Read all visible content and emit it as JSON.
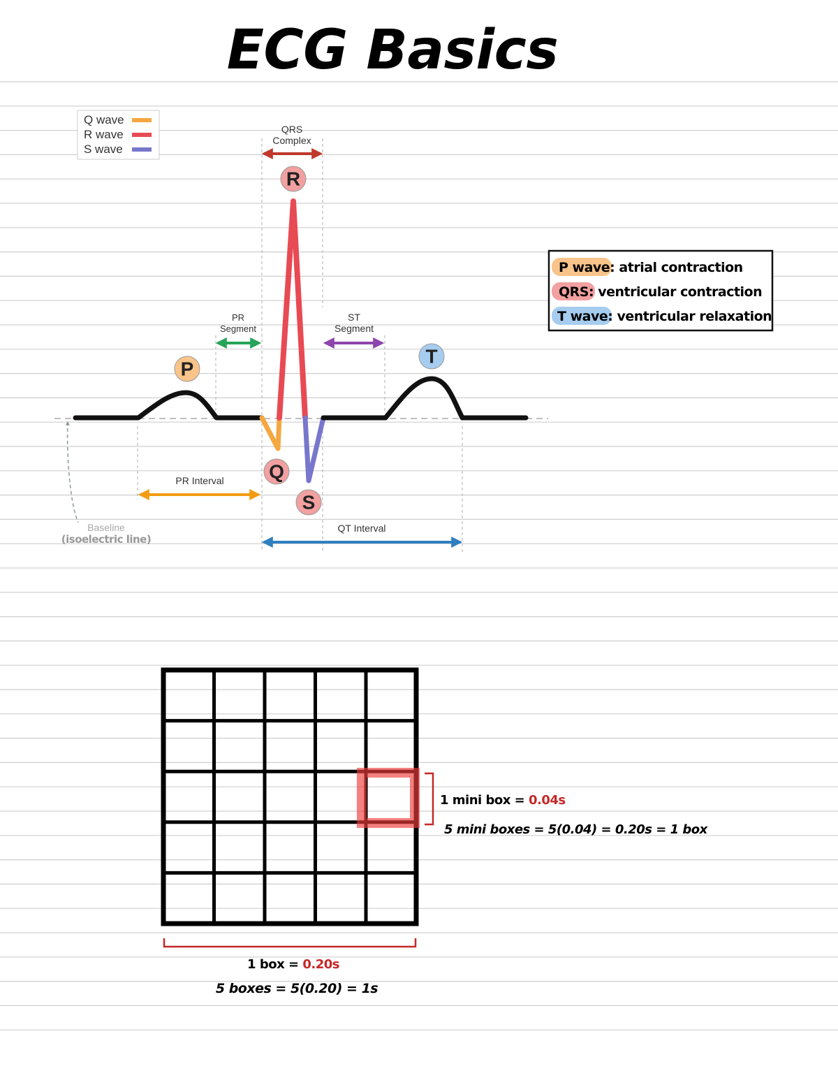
{
  "title": "ECG Basics",
  "legend": [
    {
      "label": "Q wave"
    },
    {
      "label": "R wave"
    },
    {
      "label": "S wave"
    }
  ],
  "waves": {
    "P": "P",
    "Q": "Q",
    "R": "R",
    "S": "S",
    "T": "T"
  },
  "annotations": {
    "qrs_complex": [
      "QRS",
      "Complex"
    ],
    "pr_segment": [
      "PR",
      "Segment"
    ],
    "st_segment": [
      "ST",
      "Segment"
    ],
    "pr_interval": "PR Interval",
    "qt_interval": "QT Interval",
    "baseline": [
      "Baseline",
      "(isoelectric line)"
    ]
  },
  "key": [
    {
      "term": "P wave:",
      "desc": "atrial contraction"
    },
    {
      "term": "QRS:",
      "desc": "ventricular contraction"
    },
    {
      "term": "T wave:",
      "desc": "ventricular relaxation"
    }
  ],
  "grid_notes": {
    "mini_box": {
      "text": "1 mini box =",
      "value": "0.04s"
    },
    "mini_boxes": "5 mini boxes = 5(0.04) = 0.20s = 1 box",
    "box": {
      "text": "1 box =",
      "value": "0.20s"
    },
    "boxes": "5 boxes = 5(0.20) = 1s"
  }
}
